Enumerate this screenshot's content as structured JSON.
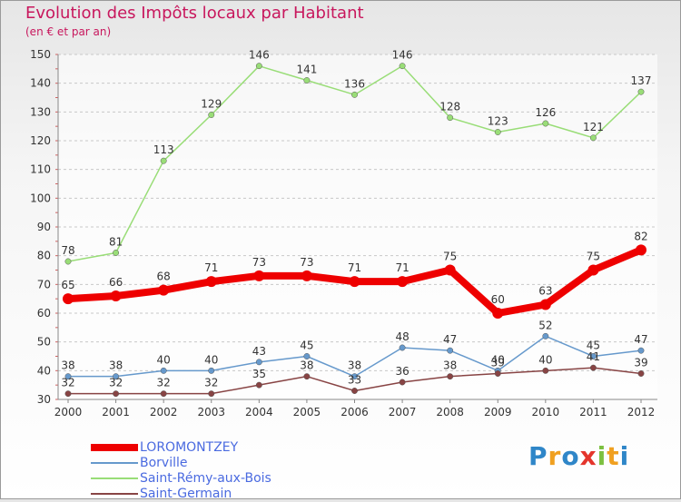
{
  "header": {
    "title": "Evolution des Impôts locaux par Habitant",
    "subtitle": "(en € et par an)"
  },
  "chart_data": {
    "type": "line",
    "title": "Evolution des Impôts locaux par Habitant",
    "subtitle": "(en € et par an)",
    "xlabel": "",
    "ylabel": "",
    "ylim": [
      30,
      150
    ],
    "yticks": [
      30,
      40,
      50,
      60,
      70,
      80,
      90,
      100,
      110,
      120,
      130,
      140,
      150
    ],
    "categories": [
      "2000",
      "2001",
      "2002",
      "2003",
      "2004",
      "2005",
      "2006",
      "2007",
      "2008",
      "2009",
      "2010",
      "2011",
      "2012"
    ],
    "grid": "horizontal dashed",
    "legend_position": "bottom-left",
    "series": [
      {
        "name": "LOROMONTZEY",
        "color": "#ee0000",
        "values": [
          65,
          66,
          68,
          71,
          73,
          73,
          71,
          71,
          75,
          60,
          63,
          75,
          82
        ]
      },
      {
        "name": "Borville",
        "color": "#6699cc",
        "values": [
          38,
          38,
          40,
          40,
          43,
          45,
          38,
          48,
          47,
          40,
          52,
          45,
          47
        ]
      },
      {
        "name": "Saint-Rémy-aux-Bois",
        "color": "#99dd77",
        "values": [
          78,
          81,
          113,
          129,
          146,
          141,
          136,
          146,
          128,
          123,
          126,
          121,
          137
        ]
      },
      {
        "name": "Saint-Germain",
        "color": "#884444",
        "values": [
          32,
          32,
          32,
          32,
          35,
          38,
          33,
          36,
          38,
          39,
          40,
          41,
          39
        ]
      }
    ]
  },
  "branding": {
    "logo_letters": [
      "P",
      "r",
      "o",
      "x",
      "i",
      "t",
      "i"
    ],
    "logo_colors": [
      "#2f86c8",
      "#f0a020",
      "#2f86c8",
      "#e4352c",
      "#7cc040",
      "#f0a020",
      "#2f86c8"
    ]
  }
}
